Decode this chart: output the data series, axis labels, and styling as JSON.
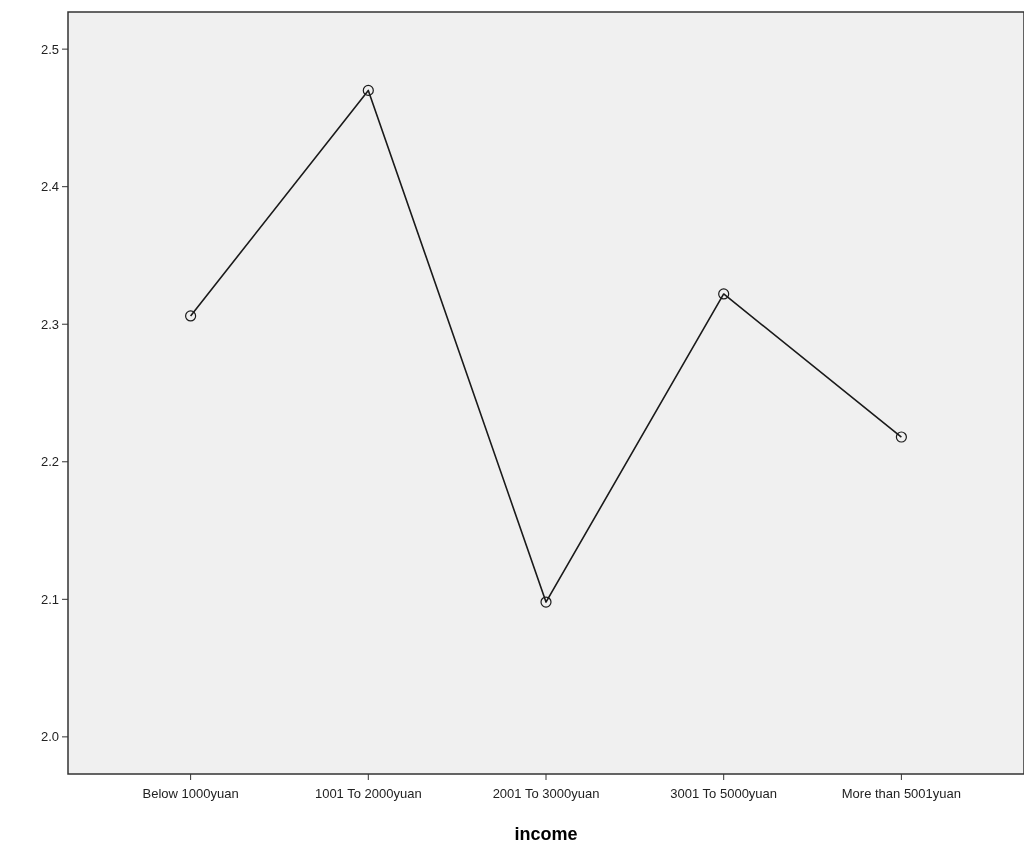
{
  "chart_data": {
    "type": "line",
    "xlabel": "income",
    "categories": [
      "Below 1000yuan",
      "1001 To 2000yuan",
      "2001 To 3000yuan",
      "3001 To 5000yuan",
      "More than 5001yuan"
    ],
    "series": [
      {
        "color": "#1a1a1a",
        "values": [
          2.306,
          2.47,
          2.098,
          2.322,
          2.218
        ]
      }
    ],
    "ylim": [
      1.973,
      2.527
    ],
    "yticks": [
      {
        "value": 2.0,
        "label": "2.0"
      },
      {
        "value": 2.1,
        "label": "2.1"
      },
      {
        "value": 2.2,
        "label": "2.2"
      },
      {
        "value": 2.3,
        "label": "2.3"
      },
      {
        "value": 2.4,
        "label": "2.4"
      },
      {
        "value": 2.5,
        "label": "2.5"
      }
    ],
    "grid": false,
    "marker": "circle",
    "line_style": "solid"
  }
}
